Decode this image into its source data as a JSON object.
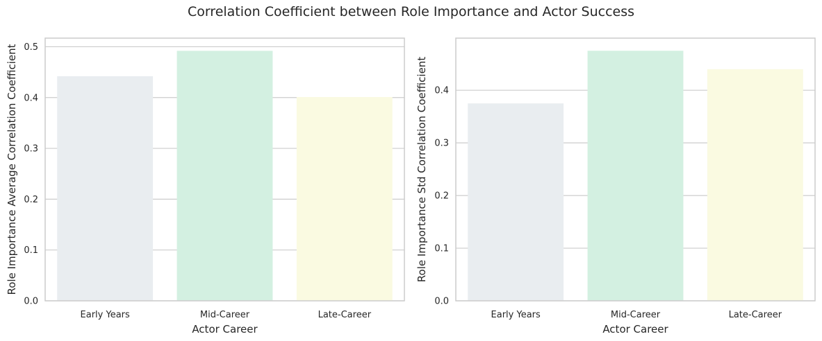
{
  "figure": {
    "suptitle": "Correlation Coefficient between Role Importance and Actor Success"
  },
  "chart_data": [
    {
      "type": "bar",
      "categories": [
        "Early Years",
        "Mid-Career",
        "Late-Career"
      ],
      "values": [
        0.442,
        0.492,
        0.401
      ],
      "colors": [
        "#E9EDF0",
        "#D3F0E1",
        "#FAFAE1"
      ],
      "xlabel": "Actor Career",
      "ylabel": "Role Importance Average Correlation Coefficient",
      "ylim": [
        0,
        0.517
      ],
      "yticks": [
        0.0,
        0.1,
        0.2,
        0.3,
        0.4,
        0.5
      ],
      "ytick_labels": [
        "0.0",
        "0.1",
        "0.2",
        "0.3",
        "0.4",
        "0.5"
      ],
      "grid": "y"
    },
    {
      "type": "bar",
      "categories": [
        "Early Years",
        "Mid-Career",
        "Late-Career"
      ],
      "values": [
        0.375,
        0.475,
        0.44
      ],
      "colors": [
        "#E9EDF0",
        "#D3F0E1",
        "#FAFAE1"
      ],
      "xlabel": "Actor Career",
      "ylabel": "Role Importance Std Correlation Coefficient",
      "ylim": [
        0,
        0.499
      ],
      "yticks": [
        0.0,
        0.1,
        0.2,
        0.3,
        0.4
      ],
      "ytick_labels": [
        "0.0",
        "0.1",
        "0.2",
        "0.3",
        "0.4"
      ],
      "grid": "y"
    }
  ]
}
